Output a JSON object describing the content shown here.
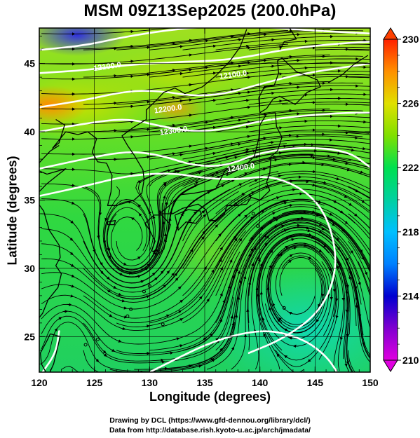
{
  "title": "MSM 09Z13Sep2025 (200.0hPa)",
  "axes": {
    "xlabel": "Longitude (degrees)",
    "ylabel": "Latitude  (degrees)",
    "xticks": [
      "120",
      "125",
      "130",
      "135",
      "140",
      "145",
      "150"
    ],
    "yticks": [
      "25",
      "30",
      "35",
      "40",
      "45"
    ],
    "xrange": [
      120,
      150
    ],
    "yrange": [
      22.4,
      47.6
    ]
  },
  "colorbar": {
    "ticks": [
      "210",
      "214",
      "218",
      "222",
      "226",
      "230"
    ],
    "range": [
      210,
      230
    ],
    "colors": [
      "#e000e0",
      "#0000d0",
      "#00c0ff",
      "#00e080",
      "#e0e000",
      "#ff4000"
    ]
  },
  "contour_labels": [
    {
      "text": "12100.0",
      "lon": 126.2,
      "lat": 44.6
    },
    {
      "text": "12100.0",
      "lon": 137.6,
      "lat": 44.0
    },
    {
      "text": "12200.0",
      "lon": 131.7,
      "lat": 41.5
    },
    {
      "text": "12300.0",
      "lon": 132.2,
      "lat": 39.9
    },
    {
      "text": "12400.0",
      "lon": 138.3,
      "lat": 37.2
    }
  ],
  "credits": [
    "Drawing by DCL (https://www.gfd-dennou.org/library/dcl/)",
    "Data from http://database.rish.kyoto-u.ac.jp/arch/jmadata/"
  ]
}
